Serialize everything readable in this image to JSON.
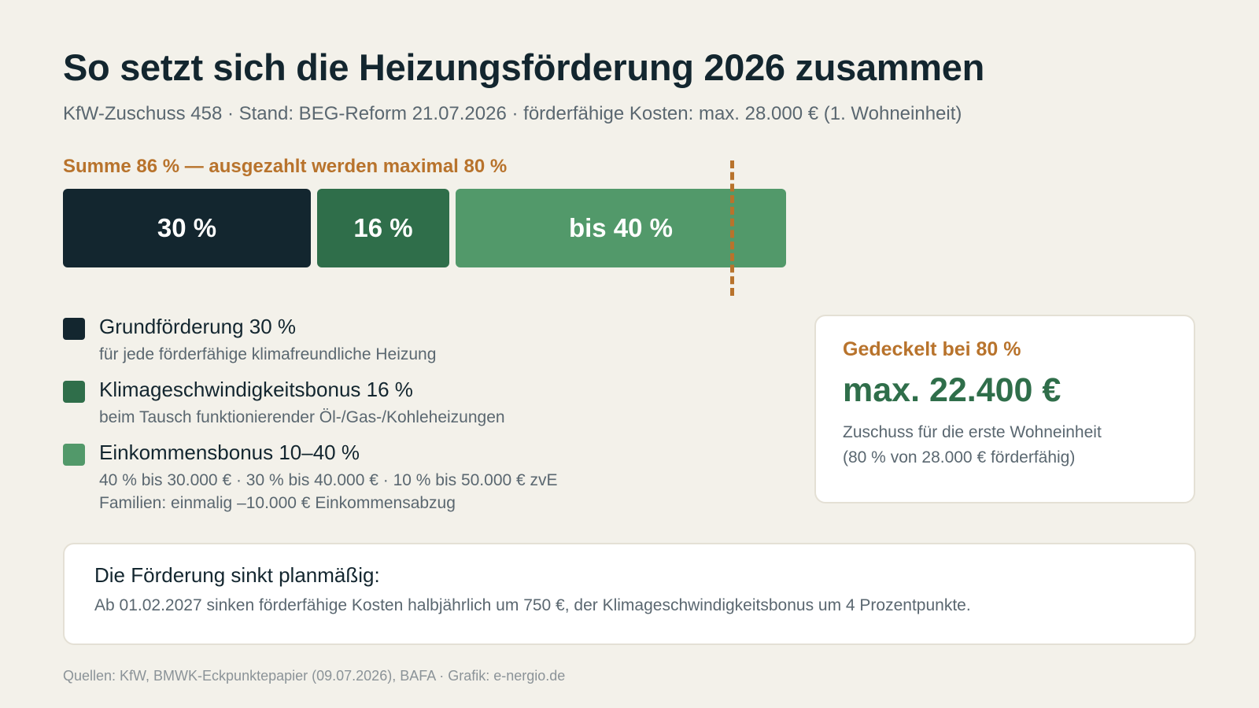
{
  "title": "So setzt sich die Heizungsförderung 2026 zusammen",
  "subtitle": "KfW-Zuschuss 458 · Stand: BEG-Reform 21.07.2026 · förderfähige Kosten: max. 28.000 € (1. Wohneinheit)",
  "sum_label": "Summe 86 % — ausgezahlt werden maximal 80 %",
  "colors": {
    "base": "#13262f",
    "climate": "#2f6e4a",
    "income": "#52996a",
    "accent": "#b8732c",
    "background": "#f3f1ea"
  },
  "chart_data": {
    "type": "bar",
    "orientation": "horizontal-stacked",
    "unit": "%",
    "total": 86,
    "cap": 80,
    "segments": [
      {
        "name": "Grundförderung",
        "value": 30,
        "label": "30 %",
        "color": "#13262f"
      },
      {
        "name": "Klimageschwindigkeitsbonus",
        "value": 16,
        "label": "16 %",
        "color": "#2f6e4a"
      },
      {
        "name": "Einkommensbonus",
        "value": 40,
        "label": "bis 40 %",
        "color": "#52996a"
      }
    ]
  },
  "legend": [
    {
      "title": "Grundförderung 30 %",
      "desc": [
        "für jede förderfähige klimafreundliche Heizung"
      ],
      "color": "#13262f"
    },
    {
      "title": "Klimageschwindigkeitsbonus 16 %",
      "desc": [
        "beim Tausch funktionierender Öl-/Gas-/Kohleheizungen"
      ],
      "color": "#2f6e4a"
    },
    {
      "title": "Einkommensbonus 10–40 %",
      "desc": [
        "40 % bis 30.000 € · 30 % bis 40.000 € · 10 % bis 50.000 € zvE",
        "Familien: einmalig –10.000 € Einkommensabzug"
      ],
      "color": "#52996a"
    }
  ],
  "cap_card": {
    "heading": "Gedeckelt bei 80 %",
    "amount": "max. 22.400 €",
    "desc_line1": "Zuschuss für die erste Wohneinheit",
    "desc_line2": "(80 % von 28.000 € förderfähig)"
  },
  "note": {
    "title": "Die Förderung sinkt planmäßig:",
    "text": "Ab 01.02.2027 sinken förderfähige Kosten halbjährlich um 750 €, der Klimageschwindigkeitsbonus um 4 Prozentpunkte."
  },
  "source": "Quellen: KfW, BMWK-Eckpunktepapier (09.07.2026), BAFA · Grafik: e-nergio.de"
}
